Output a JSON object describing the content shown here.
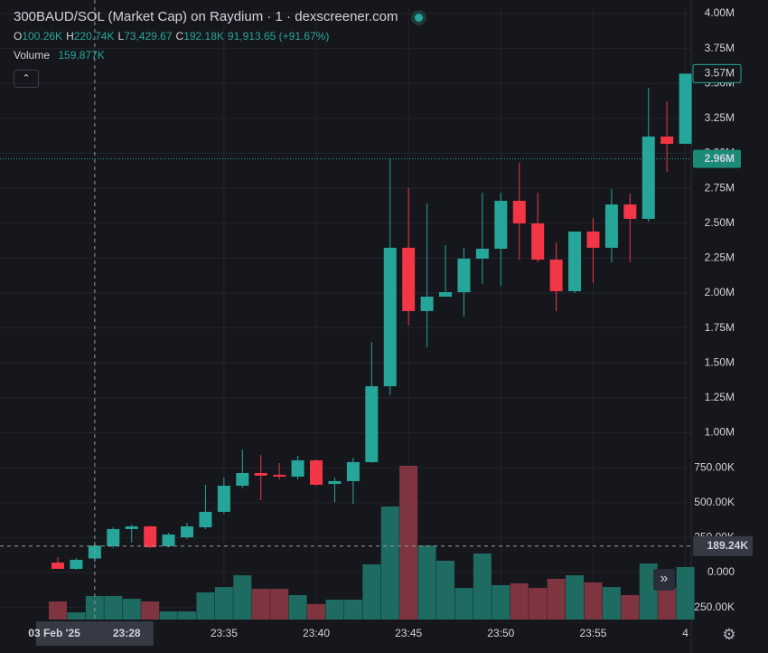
{
  "chart_data": {
    "type": "candlestick",
    "title": "300BAUD/SOL (Market Cap) on Raydium · 1 · dexscreener.com",
    "categories": [
      null,
      null,
      "23:28",
      null,
      null,
      null,
      null,
      null,
      null,
      "23:35",
      null,
      null,
      null,
      null,
      "23:40",
      null,
      null,
      null,
      null,
      "23:45",
      null,
      null,
      null,
      null,
      "23:50",
      null,
      null,
      null,
      null,
      "23:55",
      null,
      null,
      null,
      null,
      "4"
    ],
    "open": [
      71000,
      26000,
      100260,
      188000,
      311000,
      330000,
      188000,
      252000,
      324000,
      434000,
      621000,
      712000,
      699000,
      686000,
      803000,
      634000,
      654000,
      790000,
      1333000,
      2324000,
      1871000,
      1974000,
      2006000,
      2246000,
      2317000,
      2660000,
      2498000,
      2239000,
      2013000,
      2440000,
      2324000,
      2634000,
      2531000,
      3120000,
      3068000
    ],
    "high": [
      110000,
      104000,
      220740,
      324000,
      343000,
      337000,
      285000,
      356000,
      628000,
      680000,
      880000,
      841000,
      783000,
      835000,
      809000,
      680000,
      822000,
      1650000,
      2960000,
      2751000,
      2641000,
      2343000,
      2324000,
      2718000,
      2718000,
      2932000,
      2718000,
      2362000,
      2440000,
      2537000,
      2744000,
      2712000,
      3469000,
      3372000,
      3570000
    ],
    "low": [
      26000,
      19000,
      73429.67,
      175000,
      214000,
      175000,
      181000,
      240000,
      311000,
      421000,
      602000,
      518000,
      667000,
      667000,
      621000,
      505000,
      492000,
      783000,
      1269000,
      1767000,
      1612000,
      1974000,
      1832000,
      2065000,
      2052000,
      2239000,
      2220000,
      1871000,
      2000000,
      2071000,
      2220000,
      2220000,
      2511000,
      2867000,
      3068000
    ],
    "close": [
      26000,
      91000,
      192180,
      311000,
      330000,
      181000,
      272000,
      330000,
      434000,
      621000,
      712000,
      693000,
      686000,
      803000,
      628000,
      654000,
      790000,
      1333000,
      2324000,
      1871000,
      1974000,
      2006000,
      2246000,
      2317000,
      2660000,
      2498000,
      2239000,
      2013000,
      2440000,
      2324000,
      2634000,
      2531000,
      3120000,
      3068000,
      3570000
    ],
    "up_color": "#26a69a",
    "down_color": "#f23645",
    "volume": {
      "name": "Volume",
      "value_label": "159.877K",
      "axis": "y2",
      "up_color": "#1e6b61",
      "down_color": "#7e3540",
      "values": [
        123000,
        49000,
        159877,
        160000,
        141000,
        123000,
        55000,
        55000,
        185000,
        221000,
        301000,
        209000,
        209000,
        166000,
        105000,
        135000,
        135000,
        375000,
        769000,
        1046000,
        504000,
        400000,
        215000,
        449000,
        234000,
        246000,
        215000,
        277000,
        301000,
        252000,
        221000,
        166000,
        381000,
        215000,
        357000
      ]
    },
    "ylim": [
      -336600,
      4045300
    ],
    "yticks": [
      {
        "value": 4000000,
        "label": "4.00M"
      },
      {
        "value": 3750000,
        "label": "3.75M"
      },
      {
        "value": 3500000,
        "label": "3.50M"
      },
      {
        "value": 3250000,
        "label": "3.25M"
      },
      {
        "value": 3000000,
        "label": "3.00M"
      },
      {
        "value": 2750000,
        "label": "2.75M"
      },
      {
        "value": 2500000,
        "label": "2.50M"
      },
      {
        "value": 2250000,
        "label": "2.25M"
      },
      {
        "value": 2000000,
        "label": "2.00M"
      },
      {
        "value": 1750000,
        "label": "1.75M"
      },
      {
        "value": 1500000,
        "label": "1.50M"
      },
      {
        "value": 1250000,
        "label": "1.25M"
      },
      {
        "value": 1000000,
        "label": "1.00M"
      },
      {
        "value": 750000,
        "label": "750.00K"
      },
      {
        "value": 500000,
        "label": "500.00K"
      },
      {
        "value": 250000,
        "label": "250.00K"
      },
      {
        "value": 0,
        "label": "0.000"
      },
      {
        "value": -250000,
        "label": "-250.00K"
      }
    ],
    "y2lim": [
      0,
      4165000
    ],
    "grid": true,
    "legend": {
      "labels": [
        "O",
        "H",
        "L",
        "C"
      ],
      "values": [
        "100.26K",
        "220.74K",
        "73,429.67",
        "192.18K"
      ],
      "change": "91,913.65 (+91.67%)"
    },
    "crosshair": {
      "category": 2,
      "date": "03 Feb '25",
      "value": 189240,
      "label": "189.24K"
    },
    "price_line": {
      "value": 2960000,
      "label": "2.96M"
    },
    "last_price_label": "3.57M"
  }
}
